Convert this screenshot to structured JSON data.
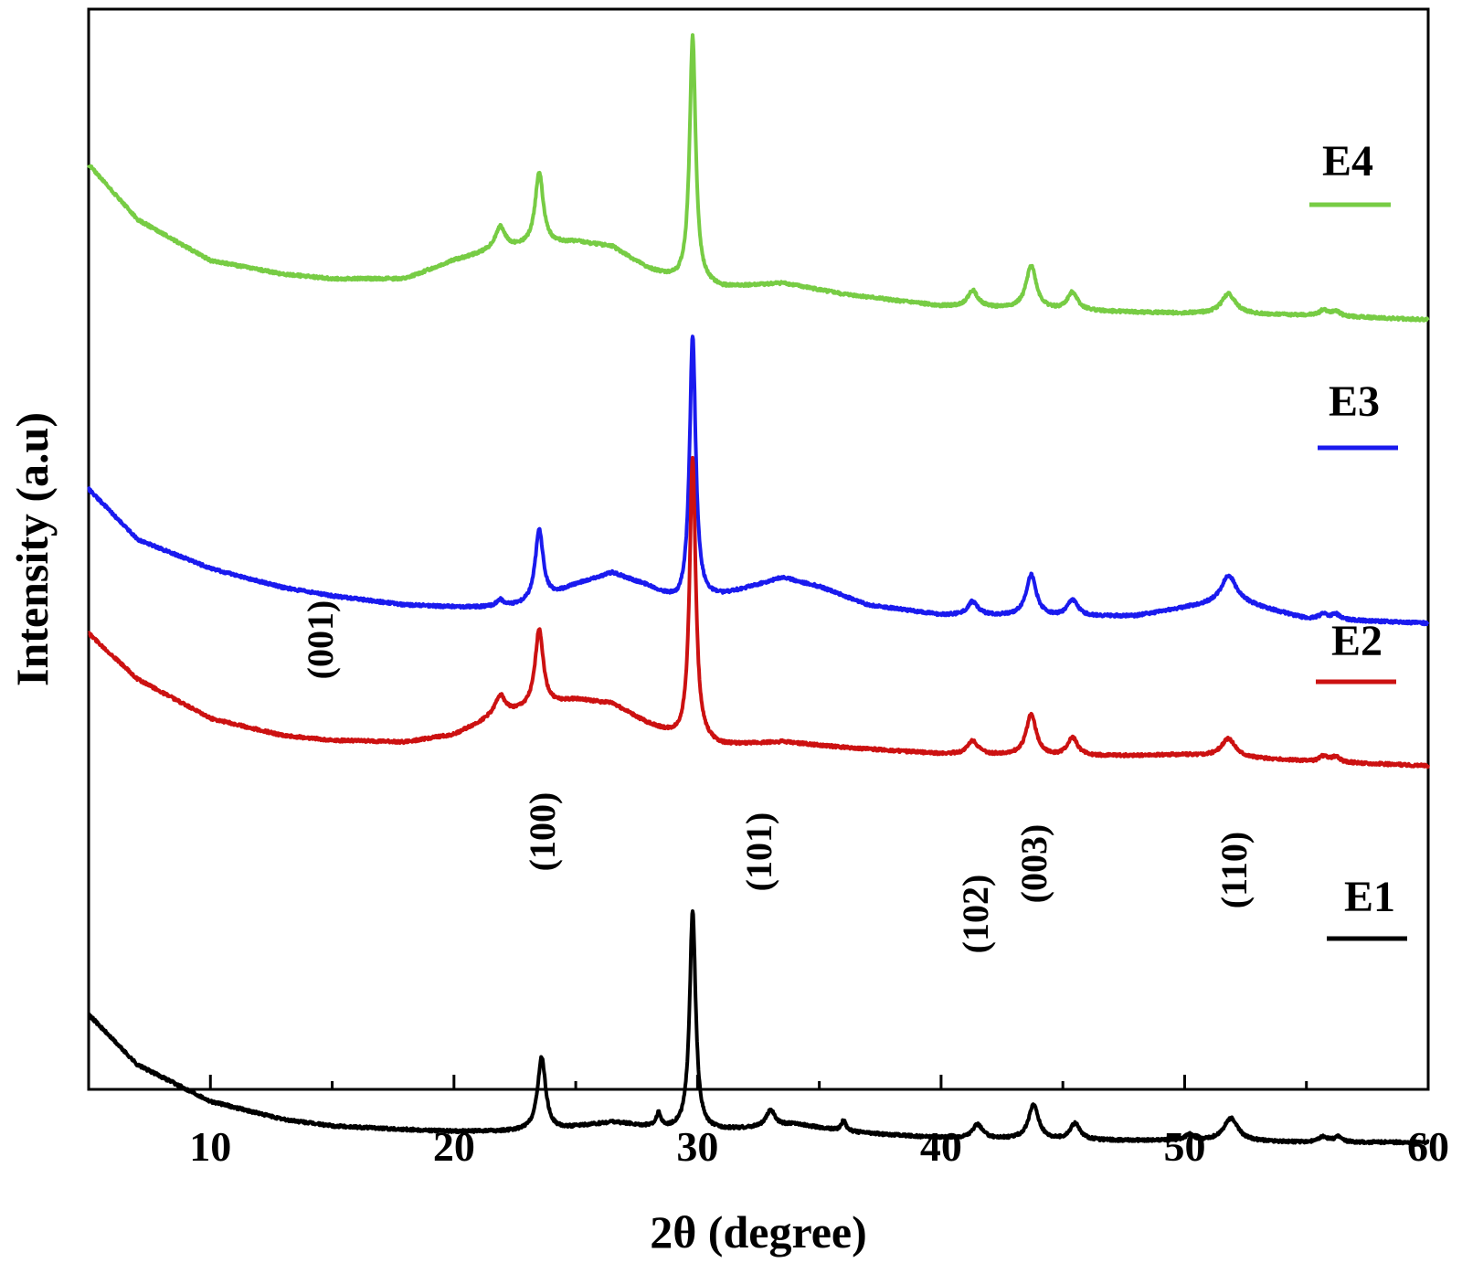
{
  "chart_data": {
    "type": "line",
    "xlabel": "2θ (degree)",
    "ylabel": "Intensity (a.u)",
    "xlim": [
      5,
      60
    ],
    "x_ticks": [
      10,
      20,
      30,
      40,
      50,
      60
    ],
    "x_tick_labels": [
      "10",
      "20",
      "30",
      "40",
      "50",
      "60"
    ],
    "y_ticks_shown": false,
    "series": [
      {
        "name": "E4",
        "color": "#77cc44",
        "baseline": [
          [
            5,
            680
          ],
          [
            7,
            620
          ],
          [
            10,
            575
          ],
          [
            13,
            560
          ],
          [
            15,
            555
          ],
          [
            18,
            555
          ],
          [
            20,
            575
          ],
          [
            21.5,
            585
          ],
          [
            23,
            590
          ],
          [
            25,
            595
          ],
          [
            26.5,
            590
          ],
          [
            28,
            565
          ],
          [
            29.2,
            553
          ],
          [
            31,
            545
          ],
          [
            33.5,
            550
          ],
          [
            36,
            538
          ],
          [
            40,
            525
          ],
          [
            45,
            520
          ],
          [
            50,
            517
          ],
          [
            55,
            515
          ],
          [
            60,
            510
          ]
        ],
        "peaks": [
          [
            21.9,
            25,
            0.25
          ],
          [
            23.5,
            80,
            0.2
          ],
          [
            29.8,
            270,
            0.15
          ],
          [
            41.3,
            18,
            0.25
          ],
          [
            43.7,
            48,
            0.25
          ],
          [
            45.4,
            20,
            0.25
          ],
          [
            51.8,
            22,
            0.35
          ],
          [
            55.7,
            6,
            0.2
          ],
          [
            56.2,
            6,
            0.2
          ]
        ]
      },
      {
        "name": "E3",
        "color": "#1a1aee",
        "baseline": [
          [
            5,
            415
          ],
          [
            7,
            360
          ],
          [
            10,
            328
          ],
          [
            13,
            307
          ],
          [
            15,
            298
          ],
          [
            18,
            288
          ],
          [
            20,
            286
          ],
          [
            22,
            285
          ],
          [
            23.5,
            290
          ],
          [
            25,
            310
          ],
          [
            26.5,
            323
          ],
          [
            28,
            308
          ],
          [
            29.2,
            290
          ],
          [
            31,
            298
          ],
          [
            33.5,
            318
          ],
          [
            35,
            308
          ],
          [
            37,
            288
          ],
          [
            40,
            277
          ],
          [
            45,
            275
          ],
          [
            48,
            276
          ],
          [
            50,
            285
          ],
          [
            52,
            293
          ],
          [
            55,
            273
          ],
          [
            60,
            268
          ]
        ],
        "peaks": [
          [
            21.9,
            8,
            0.2
          ],
          [
            23.5,
            80,
            0.2
          ],
          [
            29.8,
            290,
            0.15
          ],
          [
            41.3,
            15,
            0.25
          ],
          [
            43.7,
            45,
            0.25
          ],
          [
            45.4,
            18,
            0.25
          ],
          [
            51.8,
            28,
            0.35
          ],
          [
            55.7,
            6,
            0.2
          ],
          [
            56.2,
            6,
            0.2
          ]
        ]
      },
      {
        "name": "E2",
        "color": "#cc1111",
        "baseline": [
          [
            5,
            185
          ],
          [
            7,
            135
          ],
          [
            10,
            92
          ],
          [
            13,
            73
          ],
          [
            15,
            68
          ],
          [
            18,
            66
          ],
          [
            20,
            74
          ],
          [
            21.5,
            92
          ],
          [
            23,
            102
          ],
          [
            25,
            112
          ],
          [
            26.5,
            108
          ],
          [
            28,
            85
          ],
          [
            29.2,
            70
          ],
          [
            31,
            62
          ],
          [
            33.5,
            66
          ],
          [
            36,
            60
          ],
          [
            40,
            53
          ],
          [
            45,
            50
          ],
          [
            50,
            52
          ],
          [
            55,
            45
          ],
          [
            60,
            40
          ]
        ],
        "peaks": [
          [
            21.9,
            22,
            0.25
          ],
          [
            23.5,
            85,
            0.2
          ],
          [
            29.8,
            310,
            0.15
          ],
          [
            41.3,
            15,
            0.25
          ],
          [
            43.7,
            45,
            0.25
          ],
          [
            45.4,
            20,
            0.25
          ],
          [
            51.8,
            20,
            0.35
          ],
          [
            55.7,
            6,
            0.2
          ],
          [
            56.2,
            6,
            0.2
          ]
        ]
      },
      {
        "name": "E1",
        "color": "#000000",
        "baseline": [
          [
            5,
            0
          ],
          [
            7,
            -55
          ],
          [
            10,
            -95
          ],
          [
            13,
            -115
          ],
          [
            15,
            -122
          ],
          [
            18,
            -126
          ],
          [
            20,
            -128
          ],
          [
            22,
            -128
          ],
          [
            24,
            -127
          ],
          [
            26.5,
            -118
          ],
          [
            28.5,
            -125
          ],
          [
            30,
            -128
          ],
          [
            32,
            -125
          ],
          [
            34,
            -120
          ],
          [
            36,
            -128
          ],
          [
            38,
            -132
          ],
          [
            40,
            -135
          ],
          [
            45,
            -138
          ],
          [
            50,
            -138
          ],
          [
            55,
            -140
          ],
          [
            60,
            -140
          ]
        ],
        "peaks": [
          [
            23.6,
            80,
            0.2
          ],
          [
            28.4,
            15,
            0.12
          ],
          [
            29.8,
            240,
            0.15
          ],
          [
            33.0,
            18,
            0.2
          ],
          [
            36.0,
            12,
            0.12
          ],
          [
            41.5,
            15,
            0.25
          ],
          [
            43.8,
            38,
            0.25
          ],
          [
            45.5,
            18,
            0.25
          ],
          [
            50.2,
            6,
            0.2
          ],
          [
            51.9,
            25,
            0.35
          ],
          [
            55.7,
            6,
            0.2
          ],
          [
            56.3,
            6,
            0.2
          ]
        ]
      }
    ],
    "annotations": [
      {
        "text": "(001)",
        "x": 14.5,
        "series": "E2"
      },
      {
        "text": "(100)",
        "x": 23.6,
        "series": "E1"
      },
      {
        "text": "(101)",
        "x": 32.5,
        "series": "E1"
      },
      {
        "text": "(102)",
        "x": 41.4,
        "series": "E1"
      },
      {
        "text": "(003)",
        "x": 43.8,
        "series": "E1"
      },
      {
        "text": "(110)",
        "x": 52.0,
        "series": "E1"
      }
    ]
  }
}
